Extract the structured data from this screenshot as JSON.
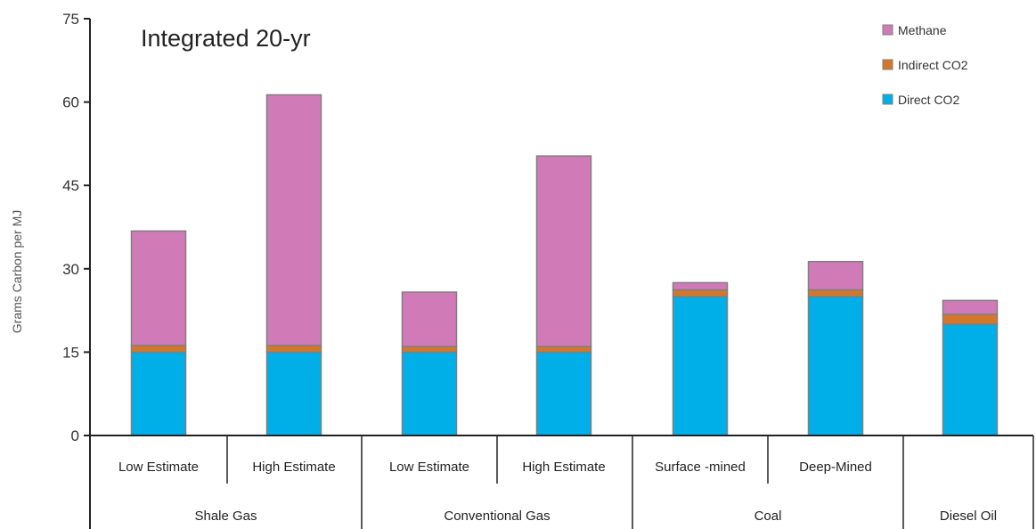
{
  "chart_data": {
    "type": "bar",
    "stacked": true,
    "title": "Integrated 20-yr",
    "ylabel": "Grams Carbon per MJ",
    "ylim": [
      0,
      75
    ],
    "yticks": [
      0,
      15,
      30,
      45,
      60,
      75
    ],
    "legend_position": "top-right",
    "groups": [
      {
        "label": "Shale Gas",
        "categories": [
          "Low Estimate",
          "High Estimate"
        ]
      },
      {
        "label": "Conventional Gas",
        "categories": [
          "Low Estimate",
          "High Estimate"
        ]
      },
      {
        "label": "Coal",
        "categories": [
          "Surface -mined",
          "Deep-Mined"
        ]
      },
      {
        "label": "Diesel Oil",
        "categories": [
          ""
        ]
      }
    ],
    "categories": [
      "Low Estimate",
      "High Estimate",
      "Low Estimate",
      "High Estimate",
      "Surface -mined",
      "Deep-Mined",
      ""
    ],
    "series": [
      {
        "name": "Direct CO2",
        "color": "#00aee8",
        "values": [
          15,
          15,
          15,
          15,
          25,
          25,
          20
        ]
      },
      {
        "name": "Indirect CO2",
        "color": "#d5772a",
        "values": [
          1.2,
          1.2,
          1,
          1,
          1.2,
          1.2,
          1.8
        ]
      },
      {
        "name": "Methane",
        "color": "#d07ab8",
        "values": [
          20.6,
          45.1,
          9.8,
          34.3,
          1.3,
          5.1,
          2.5
        ]
      }
    ]
  }
}
